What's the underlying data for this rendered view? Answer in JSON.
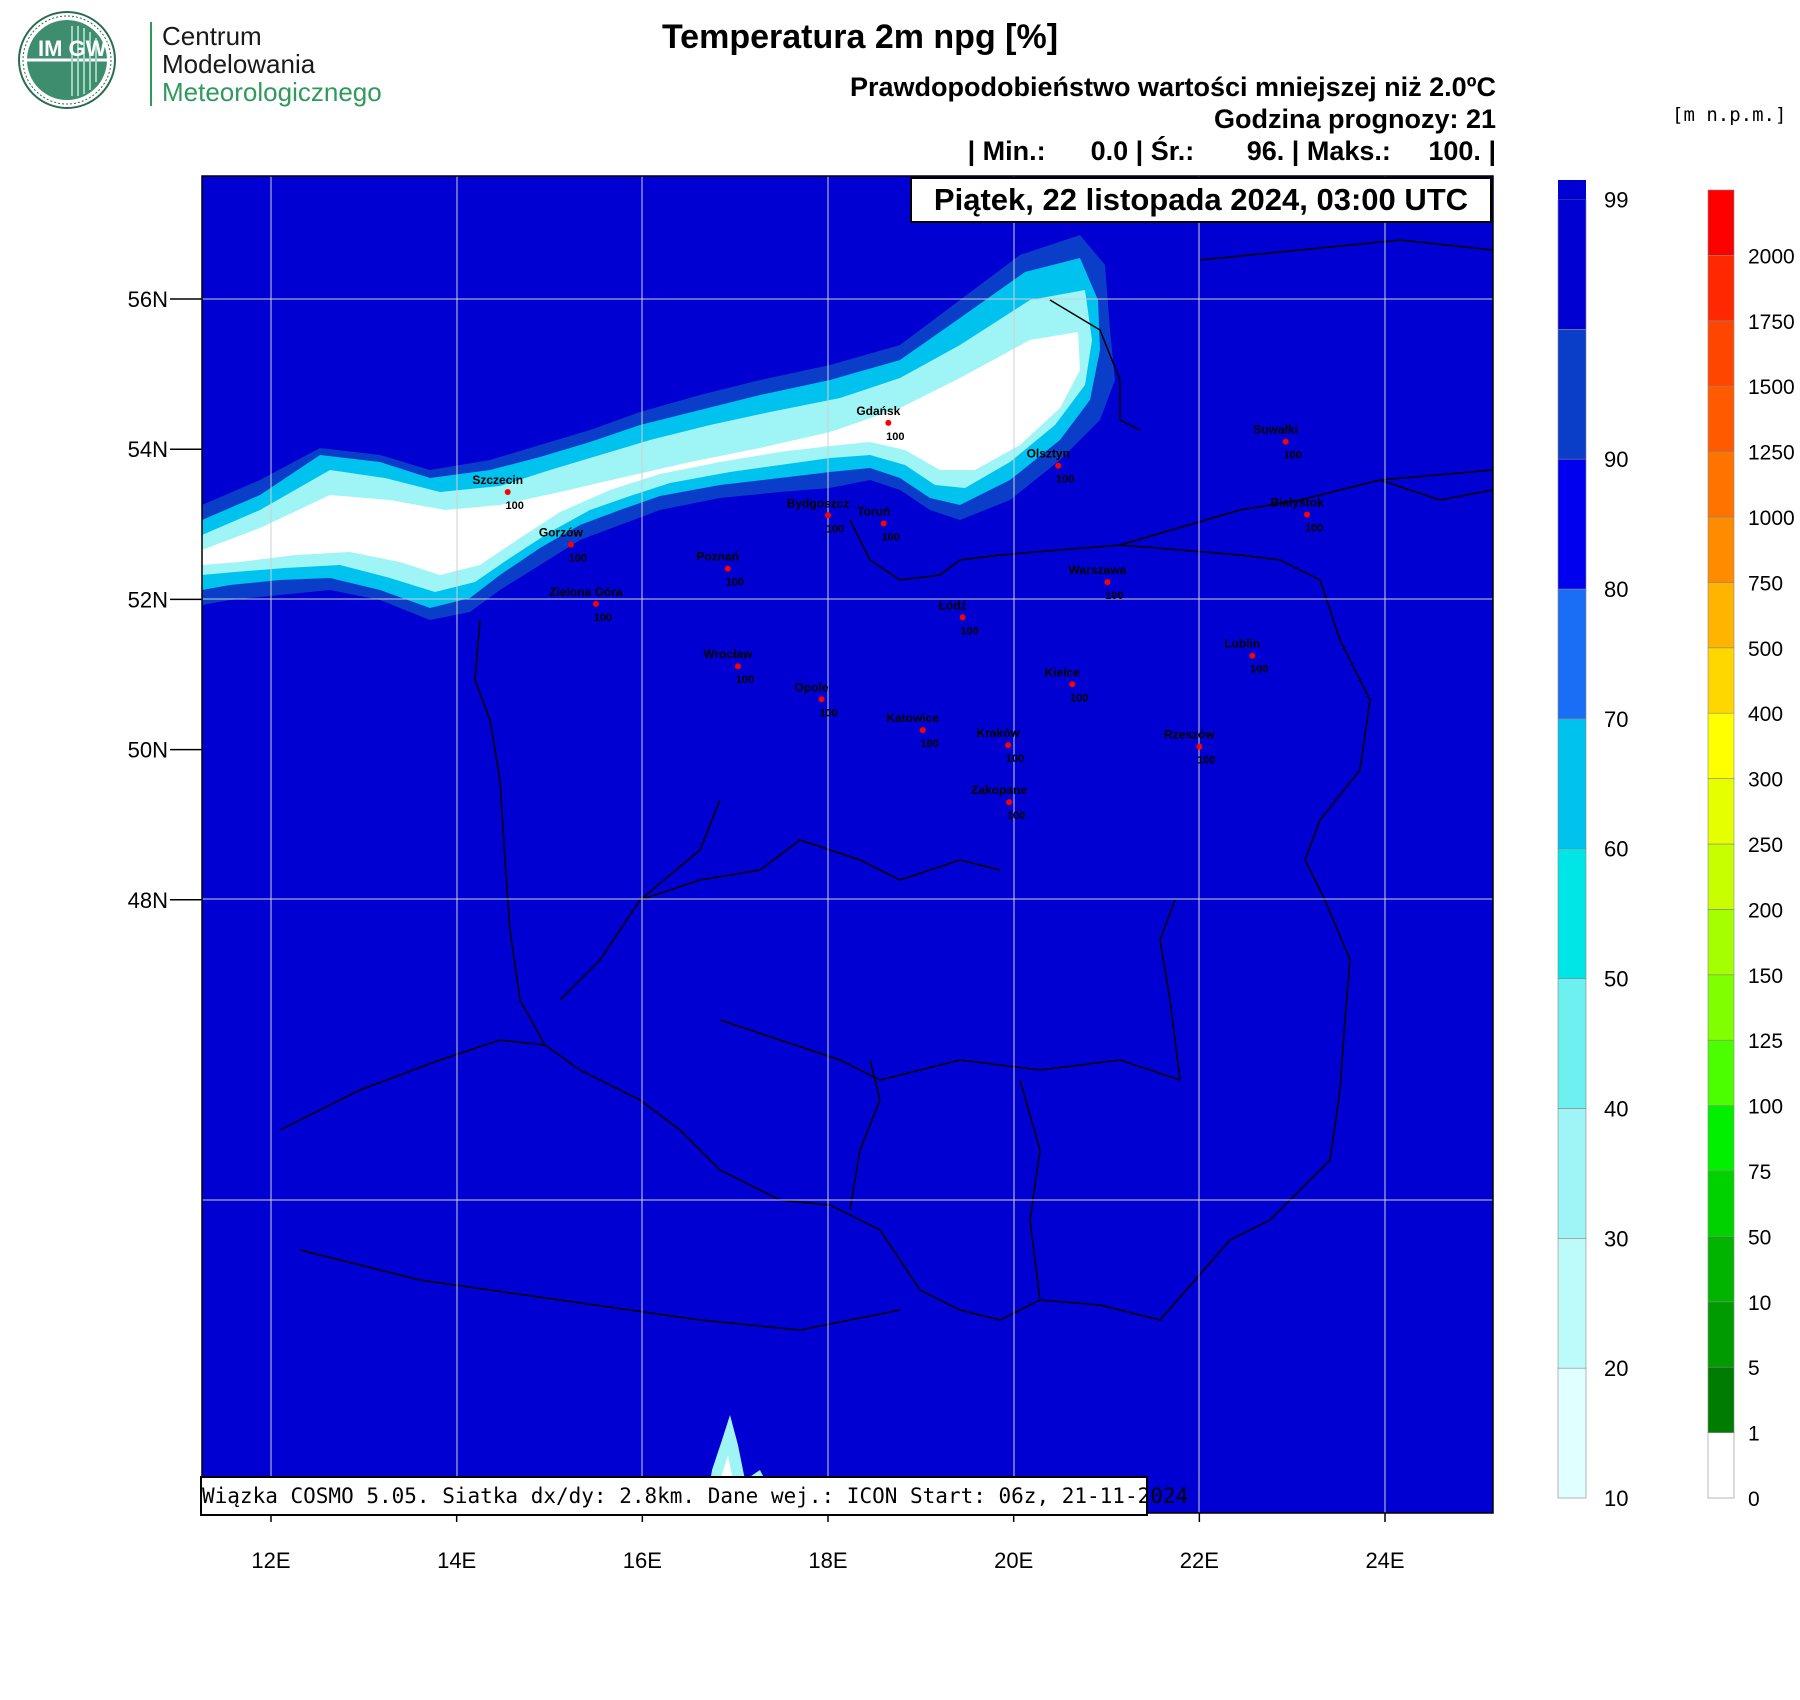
{
  "logo": {
    "emblem": "IM GW",
    "line1": "Centrum",
    "line2": "Modelowania",
    "line3": "Meteorologicznego"
  },
  "header": {
    "title": "Temperatura 2m npg [%]",
    "subtitle": "Prawdopodobieństwo wartości mniejszej niż 2.0ºC",
    "forecast_hour": "Godzina prognozy: 21",
    "stats": "| Min.:      0.0 | Śr.:       96. | Maks.:     100. |",
    "date": "Piątek, 22 listopada 2024, 03:00 UTC"
  },
  "footer_info": "Wiązka COSMO 5.05. Siatka dx/dy: 2.8km. Dane wej.: ICON Start: 06z, 21-11-2024",
  "map": {
    "lon_ticks": [
      "12E",
      "14E",
      "16E",
      "18E",
      "20E",
      "22E",
      "24E"
    ],
    "lat_ticks": [
      "56N",
      "54N",
      "52N",
      "50N",
      "48N"
    ],
    "lon_values": [
      12,
      14,
      16,
      18,
      20,
      22,
      24
    ],
    "lat_values": [
      56,
      54,
      52,
      50,
      48
    ],
    "cities": [
      {
        "name": "Gdańsk",
        "value": "100",
        "lon": 18.65,
        "lat": 54.35
      },
      {
        "name": "Suwałki",
        "value": "100",
        "lon": 22.93,
        "lat": 54.1
      },
      {
        "name": "Olsztyn",
        "value": "100",
        "lon": 20.48,
        "lat": 53.78
      },
      {
        "name": "Szczecin",
        "value": "100",
        "lon": 14.55,
        "lat": 53.43
      },
      {
        "name": "Bydgoszcz",
        "value": "100",
        "lon": 18.0,
        "lat": 53.12
      },
      {
        "name": "Toruń",
        "value": "100",
        "lon": 18.6,
        "lat": 53.01
      },
      {
        "name": "Białystok",
        "value": "100",
        "lon": 23.16,
        "lat": 53.13
      },
      {
        "name": "Gorzów",
        "value": "100",
        "lon": 15.23,
        "lat": 52.73
      },
      {
        "name": "Poznań",
        "value": "100",
        "lon": 16.92,
        "lat": 52.41
      },
      {
        "name": "Warszawa",
        "value": "100",
        "lon": 21.01,
        "lat": 52.23
      },
      {
        "name": "Zielona Góra",
        "value": "100",
        "lon": 15.5,
        "lat": 51.94
      },
      {
        "name": "Łódź",
        "value": "100",
        "lon": 19.45,
        "lat": 51.76
      },
      {
        "name": "Lublin",
        "value": "100",
        "lon": 22.57,
        "lat": 51.25
      },
      {
        "name": "Wrocław",
        "value": "100",
        "lon": 17.03,
        "lat": 51.11
      },
      {
        "name": "Kielce",
        "value": "100",
        "lon": 20.63,
        "lat": 50.87
      },
      {
        "name": "Opole",
        "value": "100",
        "lon": 17.93,
        "lat": 50.67
      },
      {
        "name": "Katowice",
        "value": "100",
        "lon": 19.02,
        "lat": 50.26
      },
      {
        "name": "Kraków",
        "value": "100",
        "lon": 19.94,
        "lat": 50.06
      },
      {
        "name": "Rzeszów",
        "value": "100",
        "lon": 22.0,
        "lat": 50.04
      },
      {
        "name": "Zakopane",
        "value": "100",
        "lon": 19.95,
        "lat": 49.3
      }
    ]
  },
  "legend_probability": {
    "levels": [
      "10",
      "20",
      "30",
      "40",
      "50",
      "60",
      "70",
      "80",
      "90",
      "99"
    ],
    "colors": [
      "#e0ffff",
      "#bdfbfb",
      "#9ff5f5",
      "#6cf0f0",
      "#00e5e5",
      "#00c2ee",
      "#1a6df5",
      "#0000f0",
      "#0a3ec8",
      "#0000d2"
    ]
  },
  "legend_elevation": {
    "unit": "[m n.p.m.]",
    "levels": [
      "0",
      "1",
      "5",
      "10",
      "50",
      "75",
      "100",
      "125",
      "150",
      "200",
      "250",
      "300",
      "400",
      "500",
      "750",
      "1000",
      "1250",
      "1500",
      "1750",
      "2000"
    ],
    "colors": [
      "#ffffff",
      "#007d00",
      "#009b00",
      "#00b400",
      "#00d200",
      "#00f000",
      "#4cff00",
      "#80ff00",
      "#a5ff00",
      "#c8ff00",
      "#e6ff00",
      "#ffff00",
      "#ffd700",
      "#ffb400",
      "#ff8c00",
      "#ff7300",
      "#ff5a00",
      "#ff4600",
      "#ff2800",
      "#ff0000"
    ]
  },
  "colors": {
    "field": "#0000d2",
    "sea_dark": "#0a3ec8",
    "sea_mid": "#00c2ee",
    "sea_light": "#9ff5f5",
    "sea_white": "#ffffff",
    "city_dot": "#ff0000"
  }
}
